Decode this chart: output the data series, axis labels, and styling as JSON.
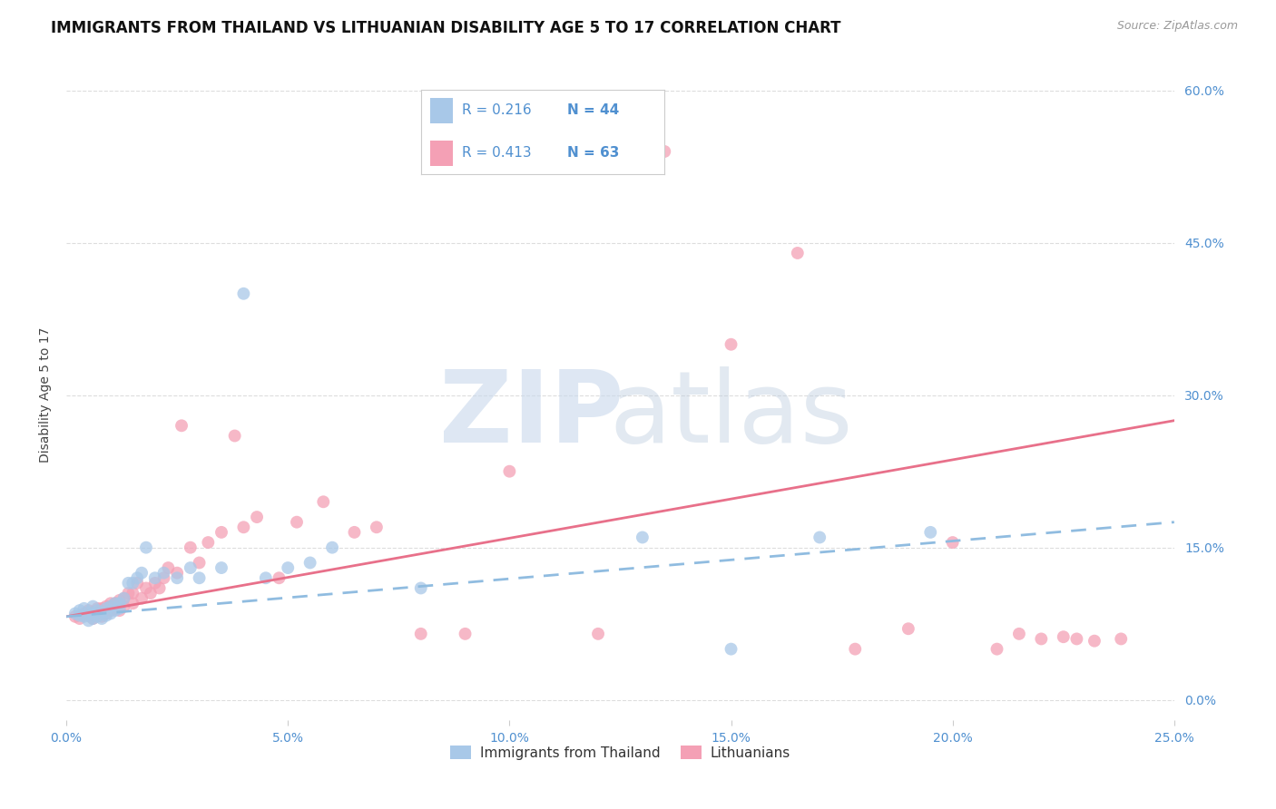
{
  "title": "IMMIGRANTS FROM THAILAND VS LITHUANIAN DISABILITY AGE 5 TO 17 CORRELATION CHART",
  "source": "Source: ZipAtlas.com",
  "ylabel": "Disability Age 5 to 17",
  "xlabel_ticks": [
    "0.0%",
    "5.0%",
    "10.0%",
    "15.0%",
    "20.0%",
    "25.0%"
  ],
  "ylabel_ticks": [
    "0.0%",
    "15.0%",
    "30.0%",
    "45.0%",
    "60.0%"
  ],
  "xlim": [
    0.0,
    0.25
  ],
  "ylim": [
    -0.02,
    0.62
  ],
  "color_thailand": "#a8c8e8",
  "color_lithuania": "#f4a0b5",
  "color_trend_blue": "#90bce0",
  "color_trend_pink": "#e8708a",
  "color_text_blue": "#5090d0",
  "color_grid": "#dddddd",
  "background_color": "#ffffff",
  "title_fontsize": 12,
  "axis_label_fontsize": 10,
  "tick_fontsize": 10,
  "legend_r1": "R = 0.216",
  "legend_n1": "N = 44",
  "legend_r2": "R = 0.413",
  "legend_n2": "N = 63",
  "thailand_scatter_x": [
    0.002,
    0.003,
    0.003,
    0.004,
    0.004,
    0.005,
    0.005,
    0.006,
    0.006,
    0.006,
    0.007,
    0.007,
    0.008,
    0.008,
    0.009,
    0.009,
    0.01,
    0.01,
    0.011,
    0.011,
    0.012,
    0.012,
    0.013,
    0.014,
    0.015,
    0.016,
    0.017,
    0.018,
    0.02,
    0.022,
    0.025,
    0.028,
    0.03,
    0.035,
    0.04,
    0.045,
    0.05,
    0.055,
    0.06,
    0.08,
    0.13,
    0.15,
    0.17,
    0.195
  ],
  "thailand_scatter_y": [
    0.085,
    0.083,
    0.088,
    0.082,
    0.09,
    0.078,
    0.086,
    0.08,
    0.085,
    0.092,
    0.082,
    0.088,
    0.08,
    0.086,
    0.083,
    0.09,
    0.085,
    0.092,
    0.088,
    0.095,
    0.09,
    0.095,
    0.1,
    0.115,
    0.115,
    0.12,
    0.125,
    0.15,
    0.12,
    0.125,
    0.12,
    0.13,
    0.12,
    0.13,
    0.4,
    0.12,
    0.13,
    0.135,
    0.15,
    0.11,
    0.16,
    0.05,
    0.16,
    0.165
  ],
  "lithuania_scatter_x": [
    0.002,
    0.003,
    0.004,
    0.005,
    0.005,
    0.006,
    0.006,
    0.007,
    0.007,
    0.008,
    0.008,
    0.009,
    0.009,
    0.01,
    0.01,
    0.011,
    0.011,
    0.012,
    0.012,
    0.013,
    0.013,
    0.014,
    0.015,
    0.015,
    0.016,
    0.017,
    0.018,
    0.019,
    0.02,
    0.021,
    0.022,
    0.023,
    0.025,
    0.026,
    0.028,
    0.03,
    0.032,
    0.035,
    0.038,
    0.04,
    0.043,
    0.048,
    0.052,
    0.058,
    0.065,
    0.07,
    0.08,
    0.09,
    0.1,
    0.12,
    0.135,
    0.15,
    0.165,
    0.178,
    0.19,
    0.2,
    0.21,
    0.215,
    0.22,
    0.225,
    0.228,
    0.232,
    0.238
  ],
  "lithuania_scatter_y": [
    0.082,
    0.08,
    0.085,
    0.083,
    0.088,
    0.08,
    0.086,
    0.085,
    0.09,
    0.082,
    0.09,
    0.085,
    0.092,
    0.088,
    0.095,
    0.09,
    0.095,
    0.088,
    0.098,
    0.092,
    0.1,
    0.105,
    0.095,
    0.105,
    0.115,
    0.1,
    0.11,
    0.105,
    0.115,
    0.11,
    0.12,
    0.13,
    0.125,
    0.27,
    0.15,
    0.135,
    0.155,
    0.165,
    0.26,
    0.17,
    0.18,
    0.12,
    0.175,
    0.195,
    0.165,
    0.17,
    0.065,
    0.065,
    0.225,
    0.065,
    0.54,
    0.35,
    0.44,
    0.05,
    0.07,
    0.155,
    0.05,
    0.065,
    0.06,
    0.062,
    0.06,
    0.058,
    0.06
  ],
  "thailand_trend_x": [
    0.0,
    0.25
  ],
  "thailand_trend_y": [
    0.082,
    0.175
  ],
  "lithuania_trend_x": [
    0.0,
    0.25
  ],
  "lithuania_trend_y": [
    0.082,
    0.275
  ]
}
